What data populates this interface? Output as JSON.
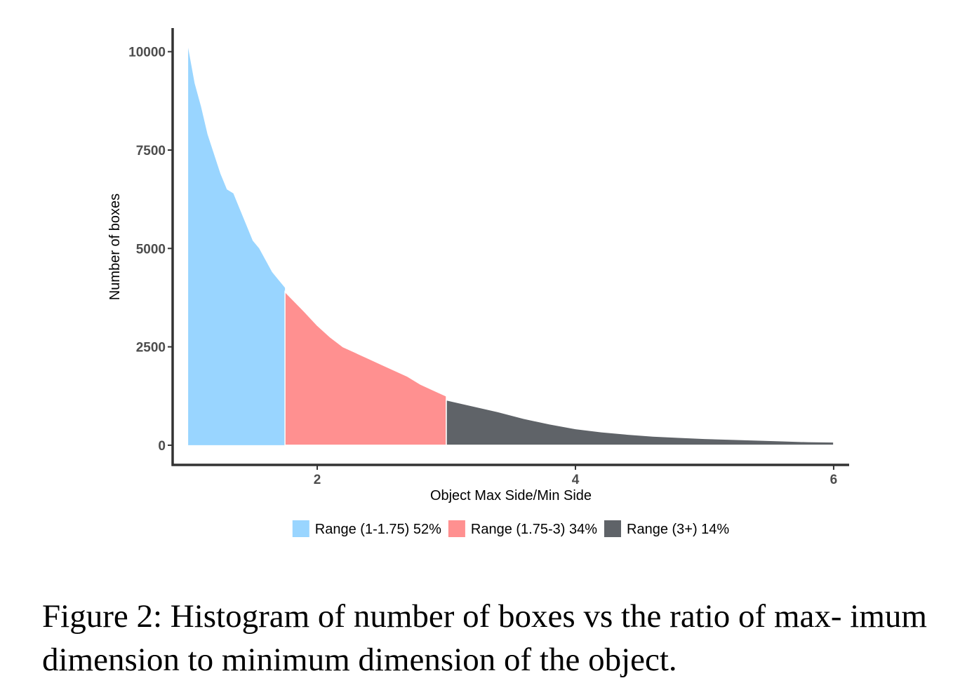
{
  "caption": "Figure 2: Histogram of number of boxes vs the ratio of max- imum dimension to minimum dimension of the object.",
  "chart_data": {
    "type": "area",
    "xlabel": "Object Max Side/Min Side",
    "ylabel": "Number of boxes",
    "xlim": [
      0.88,
      6.12
    ],
    "ylim": [
      -500,
      10600
    ],
    "x_ticks": [
      2,
      4,
      6
    ],
    "y_ticks": [
      0,
      2500,
      5000,
      7500,
      10000
    ],
    "grid": false,
    "legend_position": "bottom",
    "series": [
      {
        "name": "Range (1-1.75) 52%",
        "color": "#99d5ff",
        "x": [
          1.0,
          1.05,
          1.1,
          1.15,
          1.2,
          1.25,
          1.3,
          1.35,
          1.4,
          1.45,
          1.5,
          1.55,
          1.6,
          1.65,
          1.7,
          1.75
        ],
        "y": [
          10100,
          9200,
          8600,
          7900,
          7400,
          6900,
          6500,
          6400,
          6000,
          5600,
          5200,
          5000,
          4700,
          4400,
          4200,
          4000
        ]
      },
      {
        "name": "Range (1.75-3) 34%",
        "color": "#ff9090",
        "x": [
          1.75,
          1.9,
          2.0,
          2.1,
          2.2,
          2.3,
          2.4,
          2.5,
          2.6,
          2.7,
          2.8,
          2.9,
          3.0
        ],
        "y": [
          3900,
          3400,
          3050,
          2750,
          2500,
          2350,
          2200,
          2050,
          1900,
          1750,
          1550,
          1400,
          1250
        ]
      },
      {
        "name": "Range (3+) 14%",
        "color": "#5f6368",
        "x": [
          3.0,
          3.2,
          3.4,
          3.6,
          3.8,
          4.0,
          4.2,
          4.4,
          4.6,
          4.8,
          5.0,
          5.2,
          5.4,
          5.6,
          5.8,
          6.0
        ],
        "y": [
          1150,
          1000,
          850,
          680,
          540,
          420,
          340,
          280,
          230,
          200,
          170,
          150,
          130,
          110,
          90,
          80
        ]
      }
    ]
  }
}
